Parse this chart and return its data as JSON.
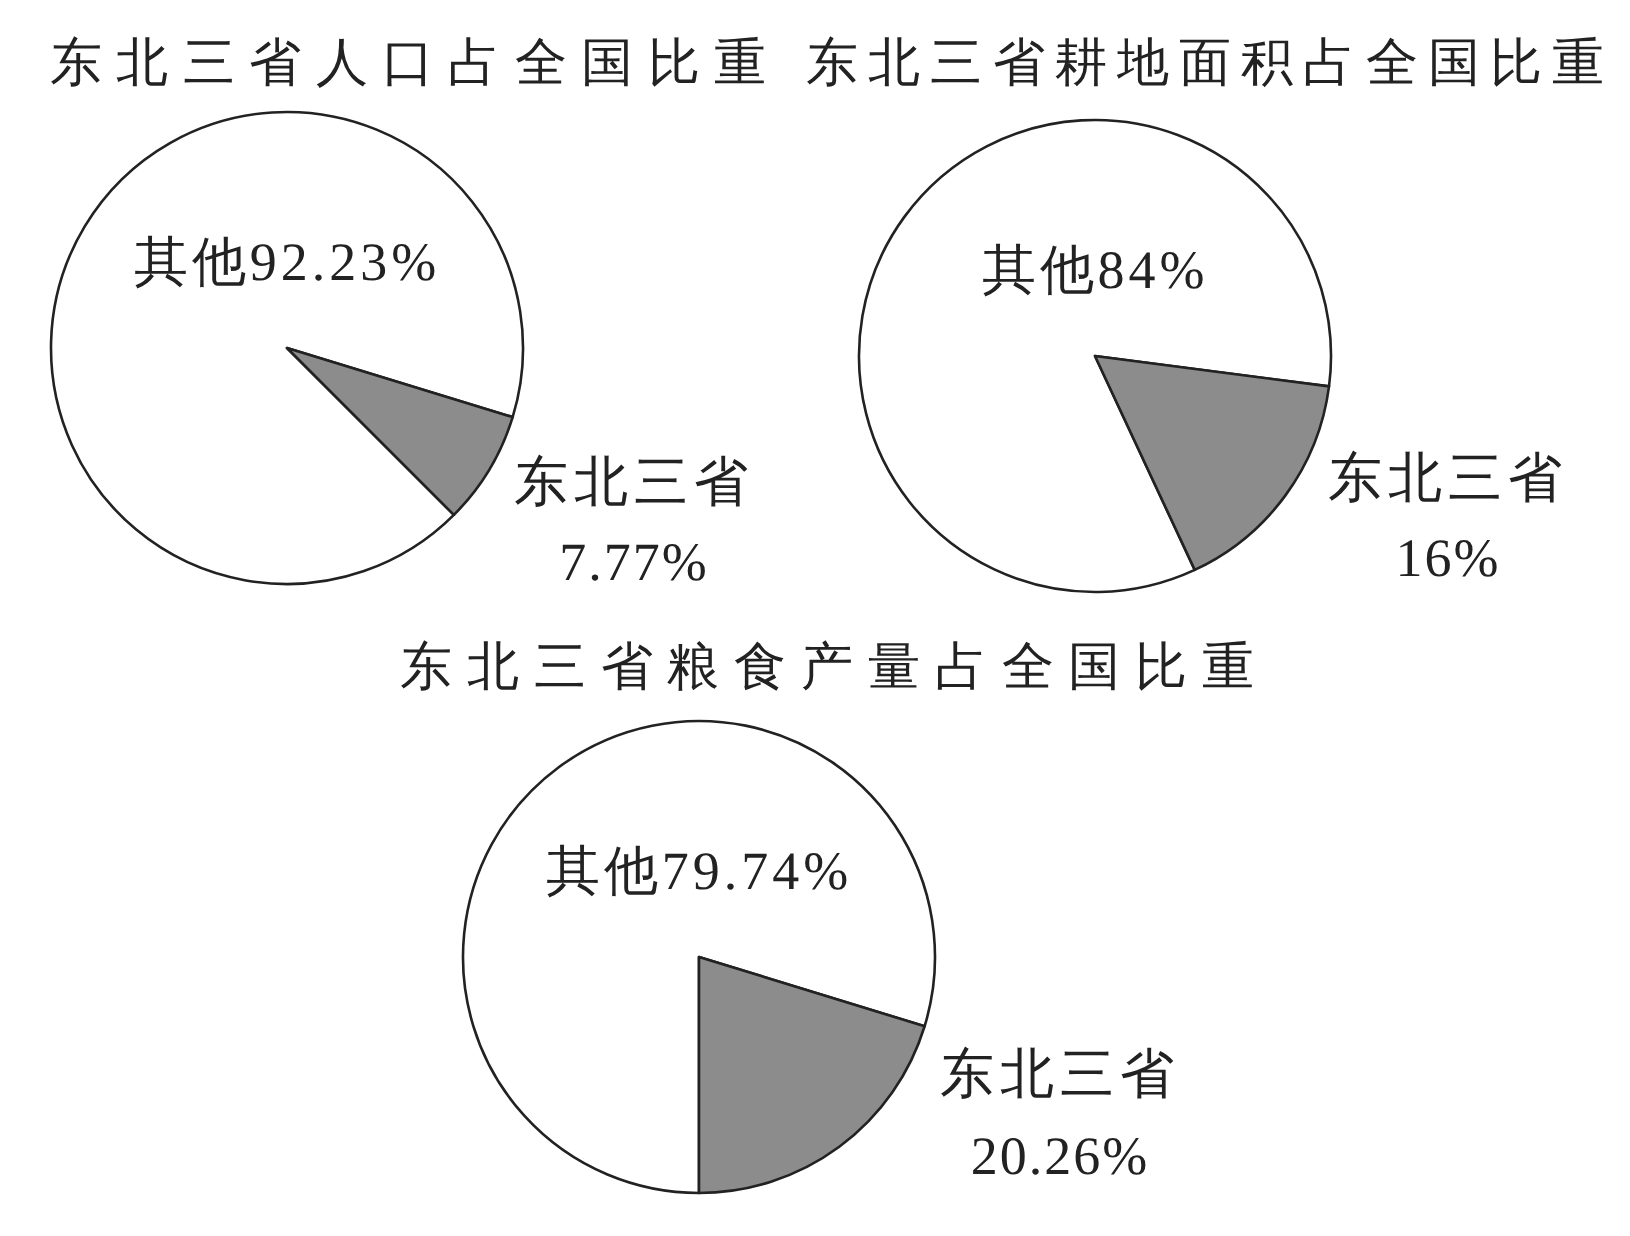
{
  "chart_data": [
    {
      "type": "pie",
      "title": "东北三省人口占全国比重",
      "categories": [
        "其他",
        "东北三省"
      ],
      "values": [
        92.23,
        7.77
      ],
      "colors": [
        "#ffffff",
        "#8c8c8c"
      ],
      "value_labels": [
        "92.23%",
        "7.77%"
      ]
    },
    {
      "type": "pie",
      "title": "东北三省耕地面积占全国比重",
      "categories": [
        "其他",
        "东北三省"
      ],
      "values": [
        84,
        16
      ],
      "colors": [
        "#ffffff",
        "#8c8c8c"
      ],
      "value_labels": [
        "84%",
        "16%"
      ]
    },
    {
      "type": "pie",
      "title": "东北三省粮食产量占全国比重",
      "categories": [
        "其他",
        "东北三省"
      ],
      "values": [
        79.74,
        20.26
      ],
      "colors": [
        "#ffffff",
        "#8c8c8c"
      ],
      "value_labels": [
        "79.74%",
        "20.26%"
      ]
    }
  ]
}
